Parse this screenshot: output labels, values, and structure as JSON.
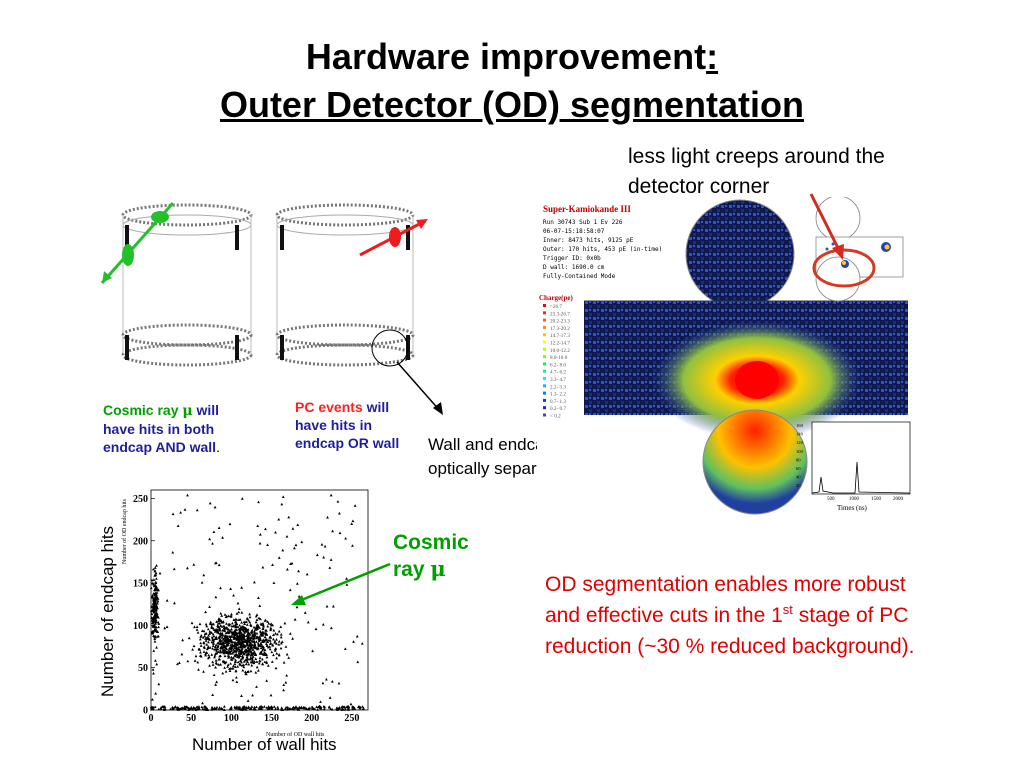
{
  "title": {
    "line1_main": "Hardware improvement",
    "line1_colon": ":",
    "line2": "Outer Detector (OD)  segmentation"
  },
  "annotations": {
    "light_creep": "less light creeps around the detector corner",
    "optical_sep": "Wall and endcaps are optically separated.",
    "cosmic_label_1": "Cosmic",
    "cosmic_label_2": "ray",
    "mu": "μ",
    "od_segmentation": "OD segmentation enables more robust and effective cuts in the 1",
    "od_segmentation_sup": "st",
    "od_segmentation_end": "stage of PC reduction (~30 % reduced background)."
  },
  "cosmic_caption": {
    "part1": "Cosmic ray ",
    "mu": "μ",
    "part2": " will have hits in both endcap AND wall",
    "period": "."
  },
  "pc_caption": {
    "part1": "PC events",
    "part2": " will have hits in endcap OR wall"
  },
  "scatter": {
    "ylabel_outer": "Number of endcap hits",
    "xlabel_outer": "Number of wall hits",
    "ylabel_inner": "Number of OD endcap hits",
    "xlabel_inner": "Number of OD wall hits"
  },
  "event_display": {
    "title": "Super-Kamiokande III",
    "info_lines": [
      "Run 30743 Sub 1 Ev 226",
      "06-07-15:18:58:07",
      "Inner: 8473 hits, 9125 pE",
      "Outer: 170 hits, 453 pE (in-time)",
      "Trigger ID: 0x0b",
      "D wall: 1690.0 cm",
      "Fully-Contained Mode"
    ],
    "charge_title": "Charge(pe)",
    "charge_scale": [
      ">26.7",
      "23.3-26.7",
      "20.2-23.3",
      "17.3-20.2",
      "14.7-17.3",
      "12.2-14.7",
      "10.0-12.2",
      "8.0-10.0",
      "6.2- 8.0",
      "4.7- 6.2",
      "3.3- 4.7",
      "2.2- 3.3",
      "1.3- 2.2",
      "0.7- 1.3",
      "0.2- 0.7",
      "< 0.2"
    ],
    "charge_colors": [
      "#ff0000",
      "#ff3000",
      "#ff6000",
      "#ff9000",
      "#ffc000",
      "#ffff00",
      "#c0ff00",
      "#80ff00",
      "#00ff40",
      "#00ff80",
      "#00ffc0",
      "#00c0ff",
      "#0080ff",
      "#0040ff",
      "#2020c0",
      "#6040a0"
    ],
    "time_axis_label": "Times (ns)",
    "time_ticks": [
      "500",
      "1000",
      "1500",
      "2000"
    ],
    "count_ticks": [
      "160",
      "140",
      "120",
      "100",
      "80",
      "60",
      "40",
      "20"
    ]
  },
  "colors": {
    "green": "#00a000",
    "red": "#ff2020",
    "blue": "#1f1f9a",
    "annotation_red": "#e00000"
  },
  "chart_data": {
    "type": "scatter",
    "xlabel": "Number of wall hits",
    "ylabel": "Number of endcap hits",
    "xlim": [
      0,
      270
    ],
    "ylim": [
      0,
      260
    ],
    "x_ticks": [
      0,
      50,
      100,
      150,
      200,
      250
    ],
    "y_ticks": [
      0,
      50,
      100,
      150,
      200,
      250
    ],
    "annotation": "Cosmic ray μ",
    "clusters": [
      {
        "description": "dense blob",
        "x_center": 110,
        "y_center": 80,
        "x_spread": 45,
        "y_spread": 30
      },
      {
        "description": "low-wall column",
        "x_center": 5,
        "y_center": 120,
        "x_spread": 4,
        "y_spread": 40
      },
      {
        "description": "zero-endcap band",
        "x_center": 130,
        "y_center": 2,
        "x_spread": 130,
        "y_spread": 2
      }
    ]
  }
}
